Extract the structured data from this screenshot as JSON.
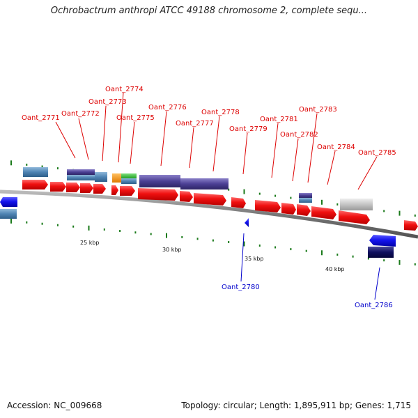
{
  "title": "Ochrobactrum anthropi ATCC 49188 chromosome 2, complete sequ...",
  "footer": {
    "accession": "Accession: NC_009668",
    "summary": "Topology: circular; Length: 1,895,911 bp; Genes: 1,715"
  },
  "colors": {
    "forward_gene": "#ee1111",
    "reverse_gene": "#1111dd",
    "forward_label": "#dd0000",
    "reverse_label": "#0000cc",
    "tick": "#1a7a1a",
    "backbone": "#888888"
  },
  "scale": {
    "labels": [
      "25 kbp",
      "30 kbp",
      "35 kbp",
      "40 kbp"
    ]
  },
  "gene_labels": {
    "forward": [
      "Oant_2771",
      "Oant_2772",
      "Oant_2773",
      "Oant_2774",
      "Oant_2775",
      "Oant_2776",
      "Oant_2777",
      "Oant_2778",
      "Oant_2779",
      "Oant_2781",
      "Oant_2782",
      "Oant_2783",
      "Oant_2784",
      "Oant_2785"
    ],
    "reverse": [
      "Oant_2780",
      "Oant_2786"
    ]
  }
}
